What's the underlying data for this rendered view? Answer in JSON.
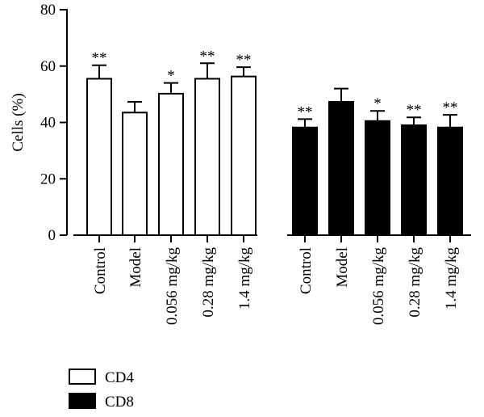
{
  "chart_data": {
    "type": "bar",
    "ylabel": "Cells (%)",
    "ylim": [
      0,
      80
    ],
    "yticks": [
      0,
      20,
      40,
      60,
      80
    ],
    "legend_placement": "bottom-left",
    "groups": [
      {
        "name": "CD4",
        "color": "#ffffff",
        "categories": [
          "Control",
          "Model",
          "0.056 mg/kg",
          "0.28 mg/kg",
          "1.4 mg/kg"
        ],
        "values": [
          55.5,
          43.5,
          50.2,
          55.5,
          56.3
        ],
        "errors": [
          4.8,
          3.8,
          3.8,
          5.5,
          3.3
        ],
        "significance": [
          "**",
          "",
          "*",
          "**",
          "**"
        ]
      },
      {
        "name": "CD8",
        "color": "#000000",
        "categories": [
          "Control",
          "Model",
          "0.056 mg/kg",
          "0.28 mg/kg",
          "1.4 mg/kg"
        ],
        "values": [
          38.2,
          47.3,
          40.5,
          39.0,
          38.2
        ],
        "errors": [
          3.0,
          4.7,
          3.6,
          2.8,
          4.5
        ],
        "significance": [
          "**",
          "",
          "*",
          "**",
          "**"
        ]
      }
    ],
    "legend": [
      {
        "label": "CD4",
        "color": "#ffffff"
      },
      {
        "label": "CD8",
        "color": "#000000"
      }
    ]
  }
}
